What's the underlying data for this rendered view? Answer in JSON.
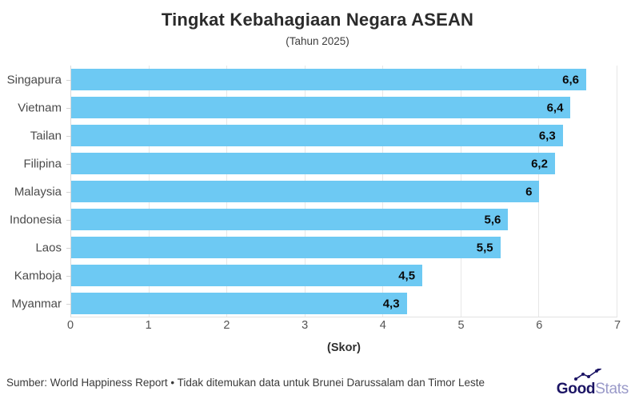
{
  "header": {
    "title": "Tingkat Kebahagiaan Negara ASEAN",
    "subtitle": "(Tahun 2025)"
  },
  "chart_data": {
    "type": "bar",
    "orientation": "horizontal",
    "title": "Tingkat Kebahagiaan Negara ASEAN",
    "subtitle": "(Tahun 2025)",
    "categories": [
      "Singapura",
      "Vietnam",
      "Tailan",
      "Filipina",
      "Malaysia",
      "Indonesia",
      "Laos",
      "Kamboja",
      "Myanmar"
    ],
    "values": [
      6.6,
      6.4,
      6.3,
      6.2,
      6,
      5.6,
      5.5,
      4.5,
      4.3
    ],
    "value_labels": [
      "6,6",
      "6,4",
      "6,3",
      "6,2",
      "6",
      "5,6",
      "5,5",
      "4,5",
      "4,3"
    ],
    "xlabel": "(Skor)",
    "ylabel": "",
    "xlim": [
      0,
      7
    ],
    "xticks": [
      0,
      1,
      2,
      3,
      4,
      5,
      6,
      7
    ],
    "grid": true,
    "legend": "none",
    "bar_color": "#6dc9f3",
    "value_label_color": "#0a0a0a",
    "grid_color": "#e7e7e7"
  },
  "footer": {
    "source_text": "Sumber: World Happiness Report • Tidak ditemukan data untuk Brunei Darussalam dan Timor Leste",
    "logo": {
      "bold_part": "Good",
      "light_part": "Stats",
      "icon": "sparkline-trend-icon",
      "navy_color": "#1b1464",
      "light_color": "#9a9ac9"
    }
  }
}
